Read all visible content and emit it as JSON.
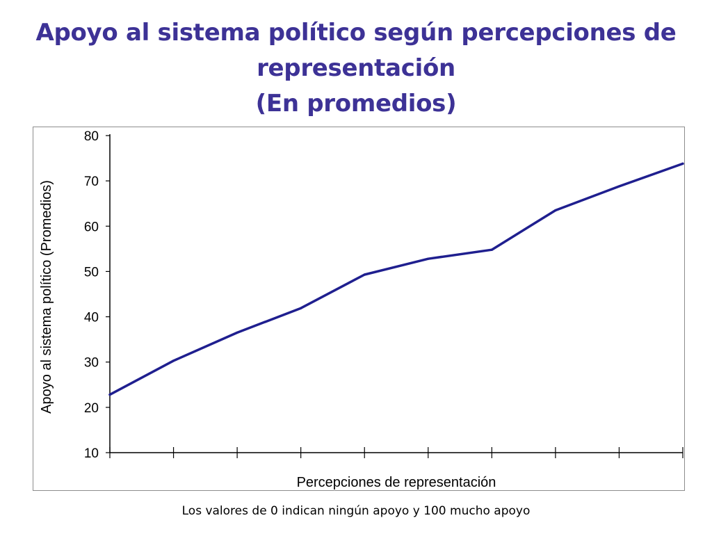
{
  "title": {
    "line1": "Apoyo al sistema político según percepciones de",
    "line2": "representación",
    "line3": "(En promedios)"
  },
  "footnote": "Los valores de 0 indican ningún apoyo y 100 mucho apoyo",
  "colors": {
    "title": "#3d3296",
    "series_line": "#1f1f8f",
    "axis": "#000000",
    "frame": "#8c8c8c"
  },
  "chart_data": {
    "type": "line",
    "title": "Apoyo al sistema político según percepciones de representación (En promedios)",
    "xlabel": "Percepciones de representación",
    "ylabel": "Apoyo al sistema político (Promedios)",
    "ylim": [
      10,
      80
    ],
    "yticks": [
      10,
      20,
      30,
      40,
      50,
      60,
      70,
      80
    ],
    "x": [
      0,
      1,
      2,
      3,
      4,
      5,
      6,
      7,
      8,
      9
    ],
    "xlim": [
      0,
      9
    ],
    "grid": false,
    "legend": "none",
    "series": [
      {
        "values": [
          22.8,
          30.3,
          36.5,
          41.9,
          49.3,
          52.8,
          54.8,
          63.5,
          68.8,
          73.8
        ]
      }
    ]
  }
}
